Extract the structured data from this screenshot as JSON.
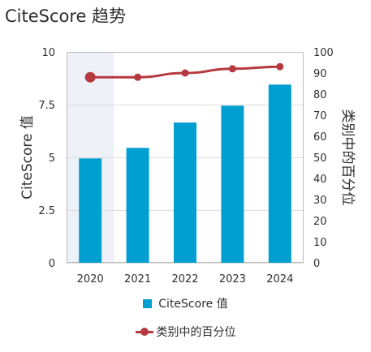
{
  "title": "CiteScore 趋势",
  "colors": {
    "bar": "#009fd1",
    "line": "#b5393f",
    "highlight_band": "#eef1f8",
    "grid": "#dddddd",
    "frame": "#bdbdbd"
  },
  "chart_data": {
    "type": "bar",
    "categories": [
      "2020",
      "2021",
      "2022",
      "2023",
      "2024"
    ],
    "series": [
      {
        "name": "CiteScore 值",
        "type": "bar",
        "axis": "left",
        "values": [
          4.95,
          5.45,
          6.65,
          7.45,
          8.45
        ]
      },
      {
        "name": "类别中的百分位",
        "type": "line",
        "axis": "right",
        "values": [
          88,
          88,
          90,
          92,
          93
        ]
      }
    ],
    "ylabel": "CiteScore 值",
    "y2label": "类别中的百分位",
    "ylim": [
      0,
      10
    ],
    "y2lim": [
      0,
      100
    ],
    "yticks": [
      "0",
      "2.5",
      "5",
      "7.5",
      "10"
    ],
    "yticks_values": [
      0,
      2.5,
      5,
      7.5,
      10
    ],
    "y2ticks": [
      "0",
      "10",
      "20",
      "30",
      "40",
      "50",
      "60",
      "70",
      "80",
      "90",
      "100"
    ],
    "y2ticks_values": [
      0,
      10,
      20,
      30,
      40,
      50,
      60,
      70,
      80,
      90,
      100
    ],
    "highlighted_category": "2020",
    "grid": true,
    "legend_position": "bottom"
  }
}
